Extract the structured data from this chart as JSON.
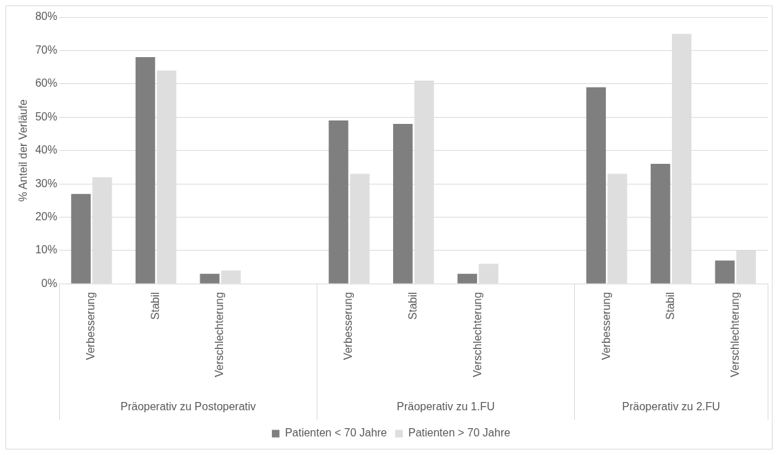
{
  "chart_data": {
    "type": "bar",
    "ylabel": "% Anteil der Verläufe",
    "categories": [
      "Verbesserung",
      "Stabil",
      "Verschlechterung",
      null,
      "Verbesserung",
      "Stabil",
      "Verschlechterung",
      null,
      "Verbesserung",
      "Stabil",
      "Verschlechterung"
    ],
    "series": [
      {
        "name": "Patienten < 70 Jahre",
        "color": "#7f7f7f",
        "values": [
          27,
          68,
          3,
          null,
          49,
          48,
          3,
          null,
          59,
          36,
          7
        ]
      },
      {
        "name": "Patienten > 70 Jahre",
        "color": "#dedede",
        "values": [
          32,
          64,
          4,
          null,
          33,
          61,
          6,
          null,
          33,
          75,
          10
        ]
      }
    ],
    "ylim": [
      0,
      80
    ],
    "yticks": [
      {
        "value": 0,
        "label": "0%"
      },
      {
        "value": 10,
        "label": "10%"
      },
      {
        "value": 20,
        "label": "20%"
      },
      {
        "value": 30,
        "label": "30%"
      },
      {
        "value": 40,
        "label": "40%"
      },
      {
        "value": 50,
        "label": "50%"
      },
      {
        "value": 60,
        "label": "60%"
      },
      {
        "value": 70,
        "label": "70%"
      },
      {
        "value": 80,
        "label": "80%"
      }
    ],
    "annotations": [
      "Präoperativ zu Postoperativ",
      "Präoperativ zu 1.FU",
      "Präoperativ zu 2.FU"
    ],
    "grid": "y",
    "legend": "bottom"
  }
}
